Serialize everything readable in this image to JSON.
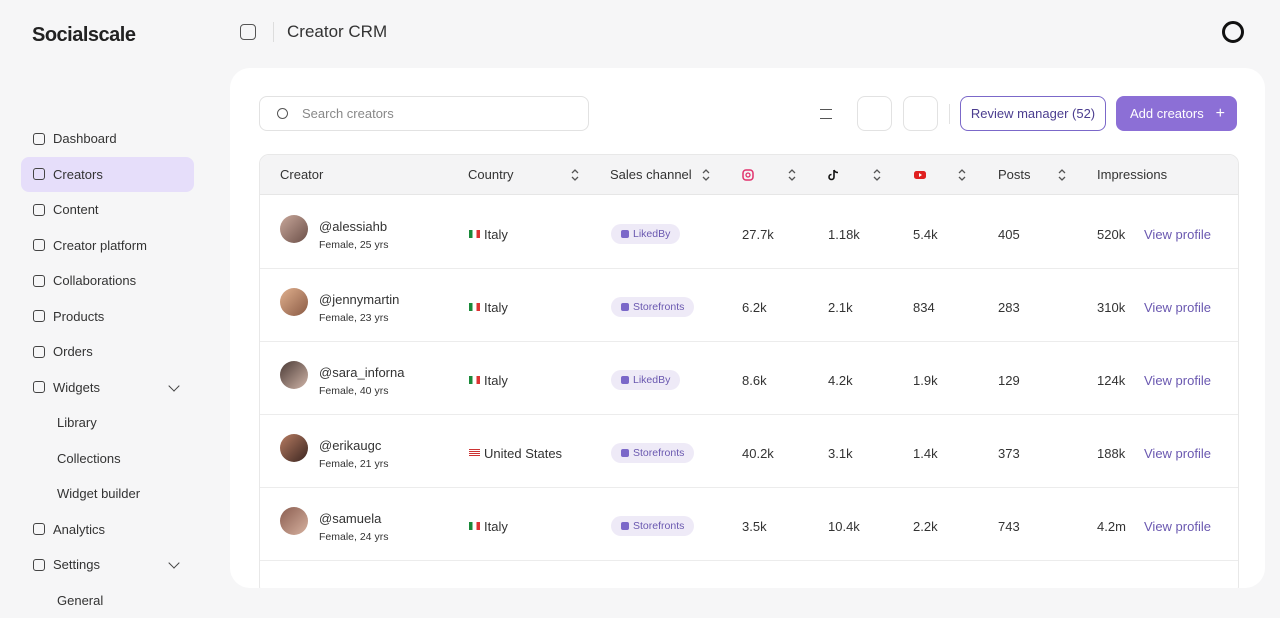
{
  "brand": "Socialscale",
  "header": {
    "title": "Creator CRM"
  },
  "nav": [
    {
      "label": "Dashboard"
    },
    {
      "label": "Creators",
      "active": true
    },
    {
      "label": "Content"
    },
    {
      "label": "Creator platform"
    },
    {
      "label": "Collaborations"
    },
    {
      "label": "Products"
    },
    {
      "label": "Orders"
    },
    {
      "label": "Widgets",
      "expandable": true
    },
    {
      "label": "Library",
      "sub": true
    },
    {
      "label": "Collections",
      "sub": true
    },
    {
      "label": "Widget builder",
      "sub": true
    },
    {
      "label": "Analytics"
    },
    {
      "label": "Settings",
      "expandable": true
    },
    {
      "label": "General",
      "sub": true
    }
  ],
  "toolbar": {
    "search_placeholder": "Search creators",
    "review_button": "Review manager (52)",
    "add_button": "Add creators"
  },
  "table": {
    "columns": [
      "Creator",
      "Country",
      "Sales channel",
      "Posts",
      "Impressions"
    ],
    "rows": [
      {
        "handle": "@alessiahb",
        "meta": "Female, 25 yrs",
        "country": "Italy",
        "channel": "LikedBy",
        "instagram": "27.7k",
        "tiktok": "1.18k",
        "youtube": "5.4k",
        "posts": "405",
        "impressions": "520k",
        "action": "View profile"
      },
      {
        "handle": "@jennymartin",
        "meta": "Female, 23 yrs",
        "country": "Italy",
        "channel": "Storefronts",
        "instagram": "6.2k",
        "tiktok": "2.1k",
        "youtube": "834",
        "posts": "283",
        "impressions": "310k",
        "action": "View profile"
      },
      {
        "handle": "@sara_inforna",
        "meta": "Female, 40 yrs",
        "country": "Italy",
        "channel": "LikedBy",
        "instagram": "8.6k",
        "tiktok": "4.2k",
        "youtube": "1.9k",
        "posts": "129",
        "impressions": "124k",
        "action": "View profile"
      },
      {
        "handle": "@erikaugc",
        "meta": "Female, 21 yrs",
        "country": "United States",
        "channel": "Storefronts",
        "instagram": "40.2k",
        "tiktok": "3.1k",
        "youtube": "1.4k",
        "posts": "373",
        "impressions": "188k",
        "action": "View profile"
      },
      {
        "handle": "@samuela",
        "meta": "Female, 24 yrs",
        "country": "Italy",
        "channel": "Storefronts",
        "instagram": "3.5k",
        "tiktok": "10.4k",
        "youtube": "2.2k",
        "posts": "743",
        "impressions": "4.2m",
        "action": "View profile"
      }
    ]
  }
}
